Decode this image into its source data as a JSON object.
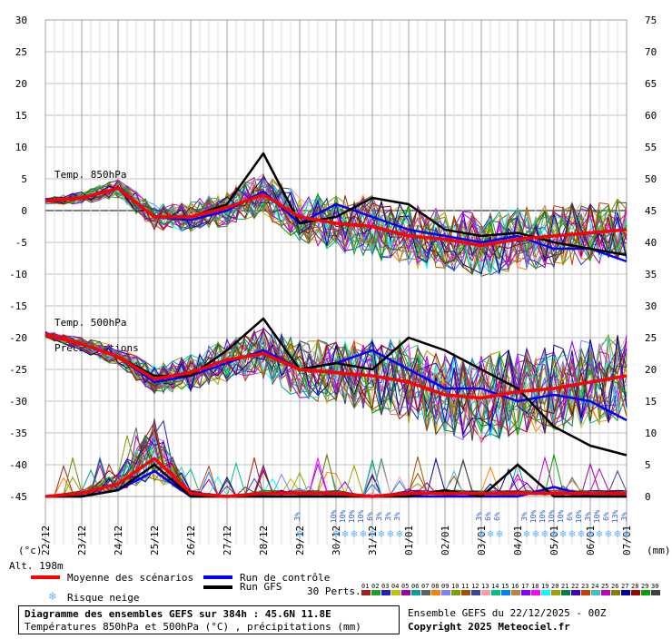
{
  "chart_data": {
    "type": "line",
    "title": "Diagramme des ensembles GEFS sur 384h : 45.6N 11.8E",
    "subtitle": "Températures 850hPa et 500hPa (°C) , précipitations (mm)",
    "left_axis": {
      "unit": "(°c)",
      "ticks": [
        30,
        25,
        20,
        15,
        10,
        5,
        0,
        -5,
        -10,
        -15,
        -20,
        -25,
        -30,
        -35,
        -40,
        -45
      ],
      "range": [
        -45,
        30
      ]
    },
    "right_axis": {
      "unit": "(mm)",
      "ticks": [
        75,
        70,
        65,
        60,
        55,
        50,
        45,
        40,
        35,
        30,
        25,
        20,
        15,
        10,
        5,
        0
      ],
      "range": [
        0,
        75
      ]
    },
    "x_dates": [
      "22/12",
      "23/12",
      "24/12",
      "25/12",
      "26/12",
      "27/12",
      "28/12",
      "29/12",
      "30/12",
      "31/12",
      "01/01",
      "02/01",
      "03/01",
      "04/01",
      "05/01",
      "06/01",
      "07/01"
    ],
    "section_labels": [
      "Temp. 850hPa",
      "Temp. 500hPa",
      "Précipitations"
    ],
    "altitude": "Alt. 198m",
    "series": [
      {
        "name": "Moyenne des scénarios",
        "color": "#ff0000",
        "t850": [
          1.5,
          2,
          3.5,
          -1,
          -1,
          0.5,
          2.5,
          -1,
          -2,
          -2.5,
          -4,
          -4.5,
          -5.5,
          -4.5,
          -4,
          -3.5,
          -3
        ],
        "t500": [
          -19.5,
          -21,
          -23,
          -26.5,
          -25.5,
          -23.5,
          -22.5,
          -25,
          -25.5,
          -26,
          -27,
          -29,
          -29.5,
          -28.5,
          -28,
          -27,
          -26
        ],
        "precip": [
          0,
          0.5,
          2,
          6,
          0.5,
          0,
          0.5,
          0.5,
          0.5,
          0,
          0.5,
          0.5,
          0.5,
          0.5,
          0.5,
          0.5,
          0.5
        ]
      },
      {
        "name": "Run de contrôle",
        "color": "#0000ff",
        "t850": [
          1.5,
          2,
          3.5,
          -1,
          -1.5,
          0,
          3,
          -2,
          1,
          -1,
          -3,
          -4,
          -5,
          -4,
          -6,
          -6,
          -8
        ],
        "t500": [
          -19.5,
          -21,
          -23,
          -27,
          -26,
          -24,
          -22,
          -25,
          -24,
          -22,
          -25,
          -28,
          -28,
          -30,
          -29,
          -30,
          -33
        ],
        "precip": [
          0,
          0,
          1,
          4,
          0,
          0,
          0,
          0,
          0,
          0,
          0,
          0,
          0,
          0,
          1.5,
          0,
          0
        ]
      },
      {
        "name": "Run GFS",
        "color": "#000000",
        "t850": [
          1.5,
          2,
          3.5,
          -1,
          -1,
          1,
          9,
          -2,
          -1,
          2,
          1,
          -3,
          -4,
          -3.5,
          -5,
          -6,
          -7
        ],
        "t500": [
          -19.5,
          -21,
          -23,
          -26,
          -26,
          -22,
          -17,
          -25,
          -24,
          -25,
          -20,
          -22,
          -25,
          -28,
          -34,
          -37,
          -38.5
        ],
        "precip": [
          0,
          0,
          1,
          5,
          0,
          0,
          0,
          0,
          0,
          0,
          0,
          1,
          0,
          5,
          0,
          0,
          0
        ]
      }
    ],
    "perturbation_colors": [
      "#a02020",
      "#20a020",
      "#2020c0",
      "#c0c000",
      "#a000a0",
      "#00a0a0",
      "#606060",
      "#ff8000",
      "#8080ff",
      "#80a000",
      "#a05000",
      "#4040a0",
      "#ffa0a0",
      "#00c080",
      "#0080ff",
      "#c08040",
      "#8000ff",
      "#ff00ff",
      "#00ffff",
      "#a0a000",
      "#008040",
      "#4000c0",
      "#c04000",
      "#40c0c0",
      "#c000c0",
      "#808000",
      "#0000a0",
      "#a00000",
      "#00a000",
      "#404040"
    ],
    "snow_risk": [
      {
        "date_index": 7.0,
        "pct": "3%"
      },
      {
        "date_index": 8.0,
        "pct": "10%"
      },
      {
        "date_index": 8.25,
        "pct": "10%"
      },
      {
        "date_index": 8.5,
        "pct": "10%"
      },
      {
        "date_index": 8.75,
        "pct": "10%"
      },
      {
        "date_index": 9.0,
        "pct": "6%"
      },
      {
        "date_index": 9.25,
        "pct": "3%"
      },
      {
        "date_index": 9.5,
        "pct": "3%"
      },
      {
        "date_index": 9.75,
        "pct": "3%"
      },
      {
        "date_index": 12.0,
        "pct": "3%"
      },
      {
        "date_index": 12.25,
        "pct": "6%"
      },
      {
        "date_index": 12.5,
        "pct": "6%"
      },
      {
        "date_index": 13.25,
        "pct": "3%"
      },
      {
        "date_index": 13.5,
        "pct": "10%"
      },
      {
        "date_index": 13.75,
        "pct": "10%"
      },
      {
        "date_index": 14.0,
        "pct": "10%"
      },
      {
        "date_index": 14.25,
        "pct": "10%"
      },
      {
        "date_index": 14.5,
        "pct": "6%"
      },
      {
        "date_index": 14.75,
        "pct": "10%"
      },
      {
        "date_index": 15.0,
        "pct": "3%"
      },
      {
        "date_index": 15.25,
        "pct": "10%"
      },
      {
        "date_index": 15.5,
        "pct": "6%"
      },
      {
        "date_index": 15.75,
        "pct": "13%"
      },
      {
        "date_index": 16.0,
        "pct": "3%"
      }
    ]
  },
  "legend": {
    "mean": "Moyenne des scénarios",
    "control": "Run de contrôle",
    "gfs": "Run GFS",
    "snow": "Risque neige",
    "perts": "30 Perts.",
    "pert_numbers": [
      "01",
      "02",
      "03",
      "04",
      "05",
      "06",
      "07",
      "08",
      "09",
      "10",
      "11",
      "12",
      "13",
      "14",
      "15",
      "16",
      "17",
      "18",
      "19",
      "20",
      "21",
      "22",
      "23",
      "24",
      "25",
      "26",
      "27",
      "28",
      "29",
      "30"
    ]
  },
  "footer": {
    "run_label": "Ensemble GEFS du 22/12/2025 - 00Z",
    "copyright": "Copyright 2025 Meteociel.fr"
  }
}
